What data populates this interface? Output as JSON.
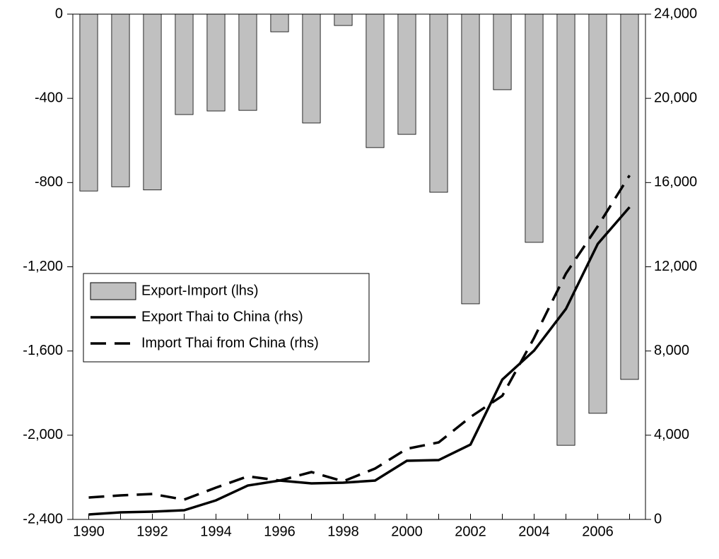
{
  "chart_data": {
    "type": "bar",
    "categories": [
      1990,
      null,
      1992,
      null,
      1994,
      null,
      1996,
      null,
      1998,
      null,
      2000,
      null,
      2002,
      null,
      2004,
      null,
      2006,
      null
    ],
    "series": [
      {
        "name": "Export-Import (lhs)",
        "type": "bar",
        "axis": "y",
        "color": "#c0c0c0",
        "values": [
          -840,
          -820,
          -835,
          -477,
          -460,
          -457,
          -84,
          -517,
          -54,
          -634,
          -571,
          -846,
          -1376,
          -359,
          -1084,
          -2048,
          -1896,
          -1735
        ]
      },
      {
        "name": "Export Thai to China (rhs)",
        "type": "line",
        "axis": "y2",
        "color": "#000000",
        "dash": "solid",
        "values": [
          235,
          336,
          370,
          436,
          906,
          1611,
          1846,
          1711,
          1745,
          1846,
          2785,
          2819,
          3557,
          6644,
          8020,
          10000,
          13087,
          14832
        ]
      },
      {
        "name": "Import Thai from China (rhs)",
        "type": "line",
        "axis": "y2",
        "color": "#000000",
        "dash": "dashed",
        "values": [
          1040,
          1141,
          1208,
          940,
          1510,
          2047,
          1846,
          2249,
          1812,
          2416,
          3356,
          3658,
          4866,
          5872,
          8624,
          11678,
          13926,
          16342
        ]
      }
    ],
    "ylim": [
      -2400,
      0
    ],
    "yticks": [
      {
        "value": -2400,
        "label": "-2,400"
      },
      {
        "value": -2000,
        "label": "-2,000"
      },
      {
        "value": -1600,
        "label": "-1,600"
      },
      {
        "value": -1200,
        "label": "-1,200"
      },
      -800,
      -400,
      0
    ],
    "y2lim": [
      0,
      24000
    ],
    "y2ticks": [
      0,
      {
        "value": 4000,
        "label": "4,000"
      },
      {
        "value": 8000,
        "label": "8,000"
      },
      {
        "value": 12000,
        "label": "12,000"
      },
      {
        "value": 16000,
        "label": "16,000"
      },
      {
        "value": 20000,
        "label": "20,000"
      },
      {
        "value": 24000,
        "label": "24,000"
      }
    ],
    "grid": false
  }
}
